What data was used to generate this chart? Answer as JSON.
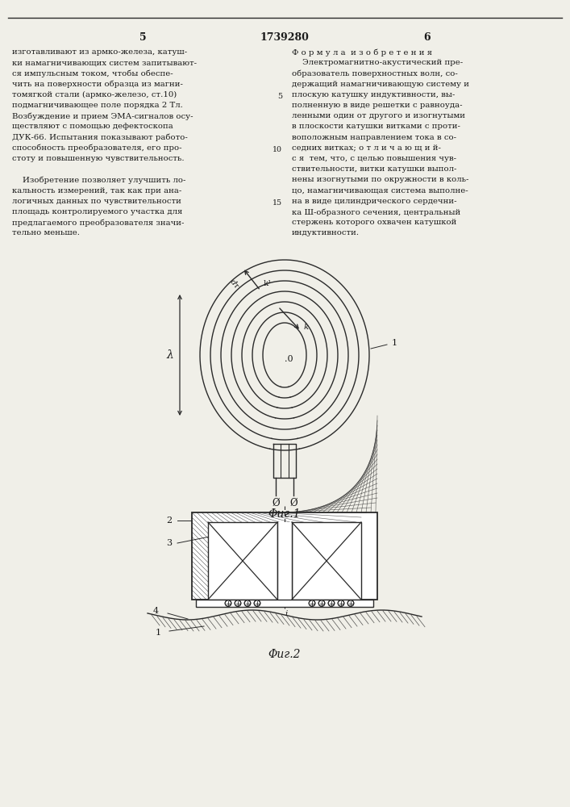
{
  "page_color": "#f0efe8",
  "text_color": "#1a1a1a",
  "line_color": "#2a2a2a",
  "patent_number": "1739280",
  "page_left_num": "5",
  "page_right_num": "6",
  "left_column_text": [
    "изготавливают из армко-железа, катуш-",
    "ки намагничивающих систем запитывают-",
    "ся импульсным током, чтобы обеспе-",
    "чить на поверхности образца из магни-",
    "томягкой стали (армко-железо, ст.10)",
    "подмагничивающее поле порядка 2 Тл.",
    "Возбуждение и прием ЭМА-сигналов осу-",
    "ществляют с помощью дефектоскопа",
    "ДУК-66. Испытания показывают работо-",
    "способность преобразователя, его про-",
    "стоту и повышенную чувствительность.",
    "",
    "    Изобретение позволяет улучшить ло-",
    "кальность измерений, так как при ана-",
    "логичных данных по чувствительности",
    "площадь контролируемого участка для",
    "предлагаемого преобразователя значи-",
    "тельно меньше."
  ],
  "right_column_header": "Ф о р м у л а  и з о б р е т е н и я",
  "right_column_text": [
    "    Электромагнитно-акустический пре-",
    "образователь поверхностных волн, со-",
    "держащий намагничивающую систему и",
    "плоскую катушку индуктивности, вы-",
    "полненную в виде решетки с равноуда-",
    "ленными один от другого и изогнутыми",
    "в плоскости катушки витками с проти-",
    "воположным направлением тока в со-",
    "седних витках; о т л и ч а ю щ и й-",
    "с я  тем, что, с целью повышения чув-",
    "ствительности, витки катушки выпол-",
    "нены изогнутыми по окружности в коль-",
    "цо, намагничивающая система выполне-",
    "на в виде цилиндрического сердечни-",
    "ка Ш-образного сечения, центральный",
    "стержень которого охвачен катушкой",
    "индуктивности."
  ],
  "fig1_caption": "Φиг.1",
  "fig2_caption": "Φиг.2",
  "label_0": "0",
  "label_1_fig1": "1",
  "label_k": "k",
  "label_k1": "k¹",
  "label_dt": "dτ",
  "label_lambda": "λ",
  "label_phi": "Ø",
  "label_2": "2",
  "label_3": "3",
  "label_4": "4",
  "label_1_fig2": "1",
  "label_i": "i"
}
